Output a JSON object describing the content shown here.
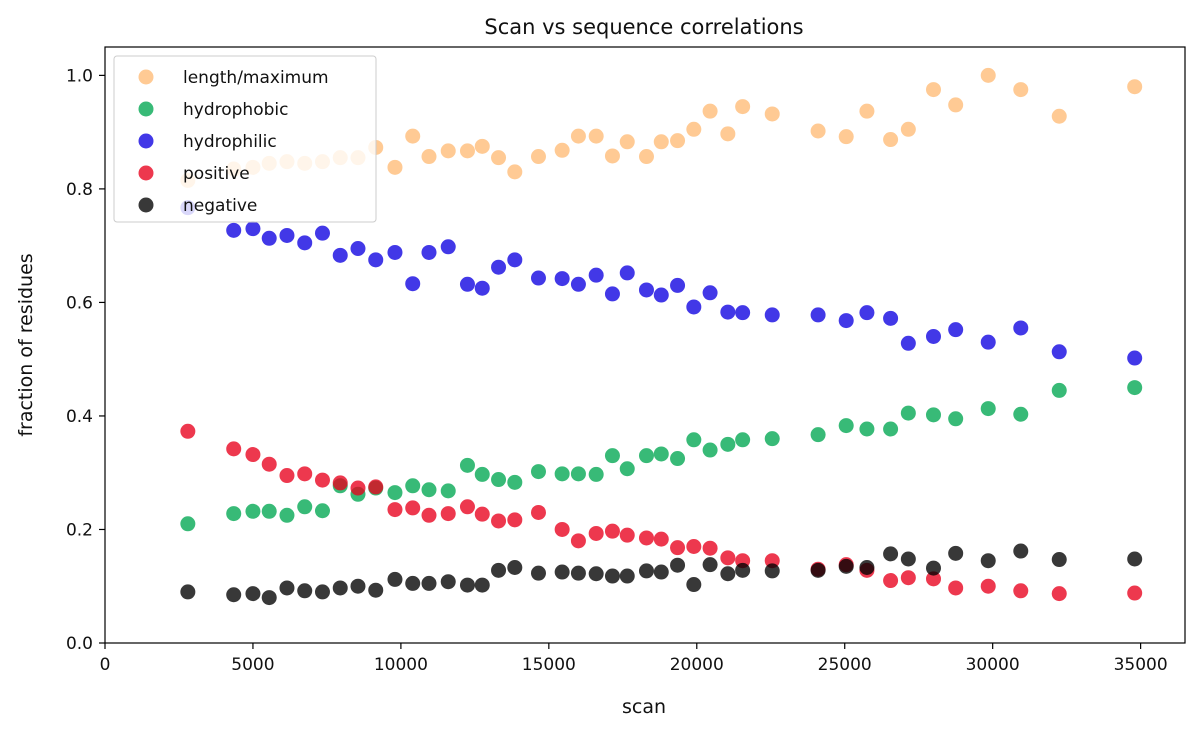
{
  "chart_data": {
    "type": "scatter",
    "title": "Scan vs sequence correlations",
    "xlabel": "scan",
    "ylabel": "fraction of residues",
    "xlim": [
      0,
      36500
    ],
    "ylim": [
      0.0,
      1.05
    ],
    "xticks": [
      0,
      5000,
      10000,
      15000,
      20000,
      25000,
      30000,
      35000
    ],
    "xtick_labels": [
      "0",
      "5000",
      "10000",
      "15000",
      "20000",
      "25000",
      "30000",
      "35000"
    ],
    "yticks": [
      0.0,
      0.2,
      0.4,
      0.6,
      0.8,
      1.0
    ],
    "ytick_labels": [
      "0.0",
      "0.2",
      "0.4",
      "0.6",
      "0.8",
      "1.0"
    ],
    "grid": false,
    "legend_position": "top-left",
    "x": [
      2800,
      4350,
      5000,
      5550,
      6150,
      6750,
      7350,
      7950,
      8550,
      9150,
      9800,
      10400,
      10950,
      11600,
      12250,
      12750,
      13300,
      13850,
      14650,
      15450,
      16000,
      16600,
      17150,
      17650,
      18300,
      18800,
      19350,
      19900,
      20450,
      21050,
      21550,
      22550,
      24100,
      25050,
      25750,
      26550,
      27150,
      28000,
      28750,
      29850,
      30950,
      32250,
      34800
    ],
    "series": [
      {
        "name": "length/maximum",
        "color": "#ffa64d",
        "values": [
          0.815,
          0.835,
          0.838,
          0.845,
          0.848,
          0.845,
          0.848,
          0.855,
          0.855,
          0.873,
          0.838,
          0.893,
          0.857,
          0.867,
          0.867,
          0.875,
          0.855,
          0.83,
          0.857,
          0.868,
          0.893,
          0.893,
          0.858,
          0.883,
          0.857,
          0.883,
          0.885,
          0.905,
          0.937,
          0.897,
          0.945,
          0.932,
          0.902,
          0.892,
          0.937,
          0.887,
          0.905,
          0.975,
          0.948,
          1.0,
          0.975,
          0.928,
          0.98
        ]
      },
      {
        "name": "hydrophobic",
        "color": "#00a651",
        "values": [
          0.21,
          0.228,
          0.232,
          0.232,
          0.225,
          0.24,
          0.233,
          0.277,
          0.262,
          0.273,
          0.265,
          0.277,
          0.27,
          0.268,
          0.313,
          0.297,
          0.288,
          0.283,
          0.302,
          0.298,
          0.298,
          0.297,
          0.33,
          0.307,
          0.33,
          0.333,
          0.325,
          0.358,
          0.34,
          0.35,
          0.358,
          0.36,
          0.367,
          0.383,
          0.377,
          0.377,
          0.405,
          0.402,
          0.395,
          0.413,
          0.403,
          0.445,
          0.45
        ]
      },
      {
        "name": "hydrophilic",
        "color": "#0d00e0",
        "values": [
          0.767,
          0.727,
          0.73,
          0.713,
          0.718,
          0.705,
          0.722,
          0.683,
          0.695,
          0.675,
          0.688,
          0.633,
          0.688,
          0.698,
          0.632,
          0.625,
          0.662,
          0.675,
          0.643,
          0.642,
          0.632,
          0.648,
          0.615,
          0.652,
          0.622,
          0.613,
          0.63,
          0.592,
          0.617,
          0.583,
          0.582,
          0.578,
          0.578,
          0.568,
          0.582,
          0.572,
          0.528,
          0.54,
          0.552,
          0.53,
          0.555,
          0.513,
          0.502
        ]
      },
      {
        "name": "positive",
        "color": "#e8001c",
        "values": [
          0.373,
          0.342,
          0.332,
          0.315,
          0.295,
          0.298,
          0.287,
          0.282,
          0.273,
          0.275,
          0.235,
          0.238,
          0.225,
          0.228,
          0.24,
          0.227,
          0.215,
          0.217,
          0.23,
          0.2,
          0.18,
          0.193,
          0.197,
          0.19,
          0.185,
          0.183,
          0.168,
          0.17,
          0.167,
          0.15,
          0.145,
          0.145,
          0.13,
          0.138,
          0.128,
          0.11,
          0.115,
          0.113,
          0.097,
          0.1,
          0.092,
          0.087,
          0.088
        ]
      },
      {
        "name": "negative",
        "color": "#000000",
        "values": [
          0.09,
          0.085,
          0.087,
          0.08,
          0.097,
          0.092,
          0.09,
          0.097,
          0.1,
          0.093,
          0.112,
          0.105,
          0.105,
          0.108,
          0.102,
          0.102,
          0.128,
          0.133,
          0.123,
          0.125,
          0.123,
          0.122,
          0.118,
          0.118,
          0.127,
          0.125,
          0.137,
          0.103,
          0.138,
          0.122,
          0.128,
          0.127,
          0.128,
          0.135,
          0.133,
          0.157,
          0.148,
          0.132,
          0.158,
          0.145,
          0.162,
          0.147,
          0.148
        ]
      }
    ]
  }
}
